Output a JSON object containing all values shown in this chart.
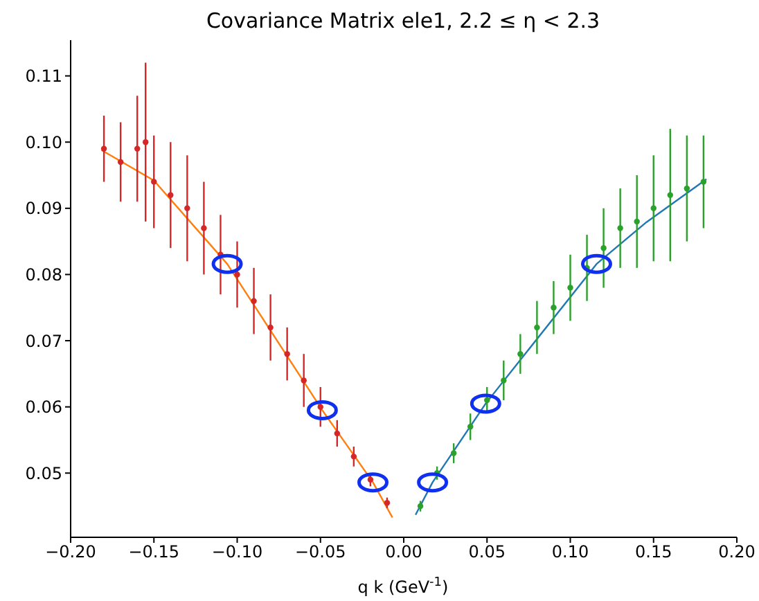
{
  "chart_data": {
    "type": "scatter",
    "title": "Covariance Matrix ele1, 2.2 ≤ η < 2.3",
    "xlabel": "q k (GeV$^{-1}$)",
    "xlim": [
      -0.2,
      0.2
    ],
    "ylim": [
      0.0403,
      0.1154
    ],
    "xticks": [
      {
        "value": -0.2,
        "label": "−0.20"
      },
      {
        "value": -0.15,
        "label": "−0.15"
      },
      {
        "value": -0.1,
        "label": "−0.10"
      },
      {
        "value": -0.05,
        "label": "−0.05"
      },
      {
        "value": 0,
        "label": "0.00"
      },
      {
        "value": 0.05,
        "label": "0.05"
      },
      {
        "value": 0.1,
        "label": "0.10"
      },
      {
        "value": 0.15,
        "label": "0.15"
      },
      {
        "value": 0.2,
        "label": "0.20"
      }
    ],
    "yticks": [
      {
        "value": 0.05,
        "label": "0.05"
      },
      {
        "value": 0.06,
        "label": "0.06"
      },
      {
        "value": 0.07,
        "label": "0.07"
      },
      {
        "value": 0.08,
        "label": "0.08"
      },
      {
        "value": 0.09,
        "label": "0.09"
      },
      {
        "value": 0.1,
        "label": "0.10"
      },
      {
        "value": 0.11,
        "label": "0.11"
      }
    ],
    "grid": false,
    "series": [
      {
        "color": "#d62728",
        "x": [
          -0.18,
          -0.17,
          -0.16,
          -0.155,
          -0.15,
          -0.14,
          -0.13,
          -0.12,
          -0.11,
          -0.1,
          -0.09,
          -0.08,
          -0.07,
          -0.06,
          -0.05,
          -0.04,
          -0.03,
          -0.02,
          -0.01
        ],
        "values": [
          0.099,
          0.097,
          0.099,
          0.1,
          0.094,
          0.092,
          0.09,
          0.087,
          0.083,
          0.08,
          0.076,
          0.072,
          0.068,
          0.064,
          0.06,
          0.056,
          0.0525,
          0.049,
          0.0455
        ],
        "errors": [
          0.005,
          0.006,
          0.008,
          0.012,
          0.007,
          0.008,
          0.008,
          0.007,
          0.006,
          0.005,
          0.005,
          0.005,
          0.004,
          0.004,
          0.003,
          0.002,
          0.0015,
          0.001,
          0.0008
        ]
      },
      {
        "color": "#2ca02c",
        "x": [
          0.01,
          0.02,
          0.03,
          0.04,
          0.05,
          0.06,
          0.07,
          0.08,
          0.09,
          0.1,
          0.11,
          0.12,
          0.13,
          0.14,
          0.15,
          0.16,
          0.17,
          0.18
        ],
        "values": [
          0.045,
          0.05,
          0.053,
          0.057,
          0.061,
          0.064,
          0.068,
          0.072,
          0.075,
          0.078,
          0.081,
          0.084,
          0.087,
          0.088,
          0.09,
          0.092,
          0.093,
          0.094
        ],
        "errors": [
          0.0008,
          0.001,
          0.0015,
          0.002,
          0.002,
          0.003,
          0.003,
          0.004,
          0.004,
          0.005,
          0.005,
          0.006,
          0.006,
          0.007,
          0.008,
          0.01,
          0.008,
          0.007
        ]
      },
      {
        "type": "line",
        "marker": "none",
        "color": "#ff7f0e",
        "x": [
          -0.1815,
          -0.15,
          -0.106,
          -0.0489,
          -0.0185,
          -0.0068
        ],
        "values": [
          0.0988,
          0.0942,
          0.0816,
          0.0595,
          0.0486,
          0.0433
        ]
      },
      {
        "type": "line",
        "marker": "none",
        "color": "#1f77b4",
        "x": [
          0.0071,
          0.0173,
          0.0492,
          0.1158,
          0.1457,
          0.1817
        ],
        "values": [
          0.0437,
          0.0486,
          0.0605,
          0.0816,
          0.0879,
          0.0944
        ]
      },
      {
        "type": "scatter",
        "marker": "circle",
        "color": "#1030f0",
        "x": [
          -0.106,
          -0.0489,
          -0.0185,
          0.0173,
          0.0492,
          0.1158
        ],
        "values": [
          0.0816,
          0.0595,
          0.0486,
          0.0486,
          0.0605,
          0.0816
        ]
      }
    ]
  }
}
